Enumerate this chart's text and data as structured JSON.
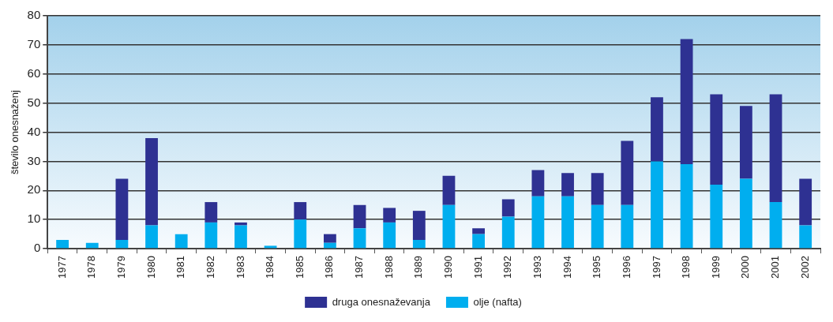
{
  "chart_data": {
    "type": "bar",
    "stacked": true,
    "ylabel": "število onesnaženj",
    "categories": [
      "1977",
      "1978",
      "1979",
      "1980",
      "1981",
      "1982",
      "1983",
      "1984",
      "1985",
      "1986",
      "1987",
      "1988",
      "1989",
      "1990",
      "1991",
      "1992",
      "1993",
      "1994",
      "1995",
      "1996",
      "1997",
      "1998",
      "1999",
      "2000",
      "2001",
      "2002"
    ],
    "series": [
      {
        "name": "olje (nafta)",
        "color": "#00aeef",
        "values": [
          3,
          2,
          3,
          8,
          5,
          9,
          8,
          1,
          10,
          2,
          7,
          9,
          3,
          15,
          5,
          11,
          18,
          18,
          15,
          15,
          30,
          29,
          22,
          24,
          16,
          8
        ]
      },
      {
        "name": "druga onesnaževanja",
        "color": "#2e3192",
        "values": [
          0,
          0,
          21,
          30,
          0,
          7,
          1,
          0,
          6,
          3,
          8,
          5,
          10,
          10,
          2,
          6,
          9,
          8,
          11,
          22,
          22,
          43,
          31,
          25,
          37,
          16
        ]
      }
    ],
    "ylim": [
      0,
      80
    ],
    "yticks": [
      0,
      10,
      20,
      30,
      40,
      50,
      60,
      70,
      80
    ],
    "grid": "y",
    "legend": "bottom"
  }
}
